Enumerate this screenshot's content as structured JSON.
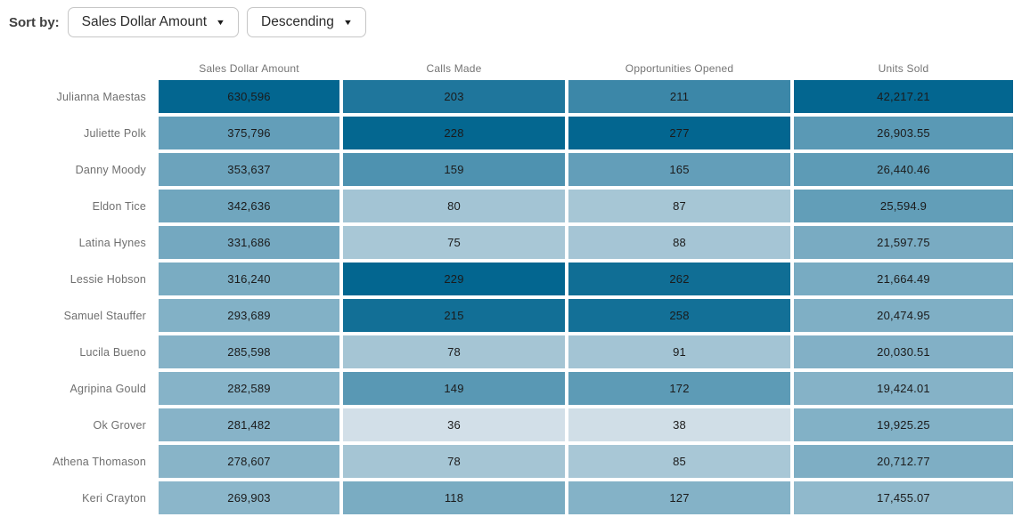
{
  "sort_bar": {
    "label": "Sort by:",
    "sort_field": {
      "value": "Sales Dollar Amount"
    },
    "sort_order": {
      "value": "Descending"
    }
  },
  "icons": {
    "caret_down": "▼"
  },
  "chart_data": {
    "type": "heatmap",
    "title": "Sales rep performance heatmap table",
    "sort": {
      "by": "Sales Dollar Amount",
      "order": "Descending"
    },
    "columns": [
      "Sales Dollar Amount",
      "Calls Made",
      "Opportunities Opened",
      "Units Sold"
    ],
    "rows": [
      "Julianna Maestas",
      "Juliette Polk",
      "Danny Moody",
      "Eldon Tice",
      "Latina Hynes",
      "Lessie Hobson",
      "Samuel Stauffer",
      "Lucila Bueno",
      "Agripina Gould",
      "Ok Grover",
      "Athena Thomason",
      "Keri Crayton"
    ],
    "values": [
      [
        630596,
        203,
        211,
        42217.21
      ],
      [
        375796,
        228,
        277,
        26903.55
      ],
      [
        353637,
        159,
        165,
        26440.46
      ],
      [
        342636,
        80,
        87,
        25594.9
      ],
      [
        331686,
        75,
        88,
        21597.75
      ],
      [
        316240,
        229,
        262,
        21664.49
      ],
      [
        293689,
        215,
        258,
        20474.95
      ],
      [
        285598,
        78,
        91,
        20030.51
      ],
      [
        282589,
        149,
        172,
        19424.01
      ],
      [
        281482,
        36,
        38,
        19925.25
      ],
      [
        278607,
        78,
        85,
        20712.77
      ],
      [
        269903,
        118,
        127,
        17455.07
      ]
    ],
    "display": [
      [
        "630,596",
        "203",
        "211",
        "42,217.21"
      ],
      [
        "375,796",
        "228",
        "277",
        "26,903.55"
      ],
      [
        "353,637",
        "159",
        "165",
        "26,440.46"
      ],
      [
        "342,636",
        "80",
        "87",
        "25,594.9"
      ],
      [
        "331,686",
        "75",
        "88",
        "21,597.75"
      ],
      [
        "316,240",
        "229",
        "262",
        "21,664.49"
      ],
      [
        "293,689",
        "215",
        "258",
        "20,474.95"
      ],
      [
        "285,598",
        "78",
        "91",
        "20,030.51"
      ],
      [
        "282,589",
        "149",
        "172",
        "19,424.01"
      ],
      [
        "281,482",
        "36",
        "38",
        "19,925.25"
      ],
      [
        "278,607",
        "78",
        "85",
        "20,712.77"
      ],
      [
        "269,903",
        "118",
        "127",
        "17,455.07"
      ]
    ],
    "color_scale": {
      "min_color": "#d3e0e8",
      "max_color": "#036690",
      "normalization": "per-column",
      "column_domains": [
        [
          80000,
          630596
        ],
        [
          35,
          229
        ],
        [
          35,
          277
        ],
        [
          5800,
          42217.21
        ]
      ]
    },
    "legend": "none",
    "grid": "white gaps between cells"
  }
}
